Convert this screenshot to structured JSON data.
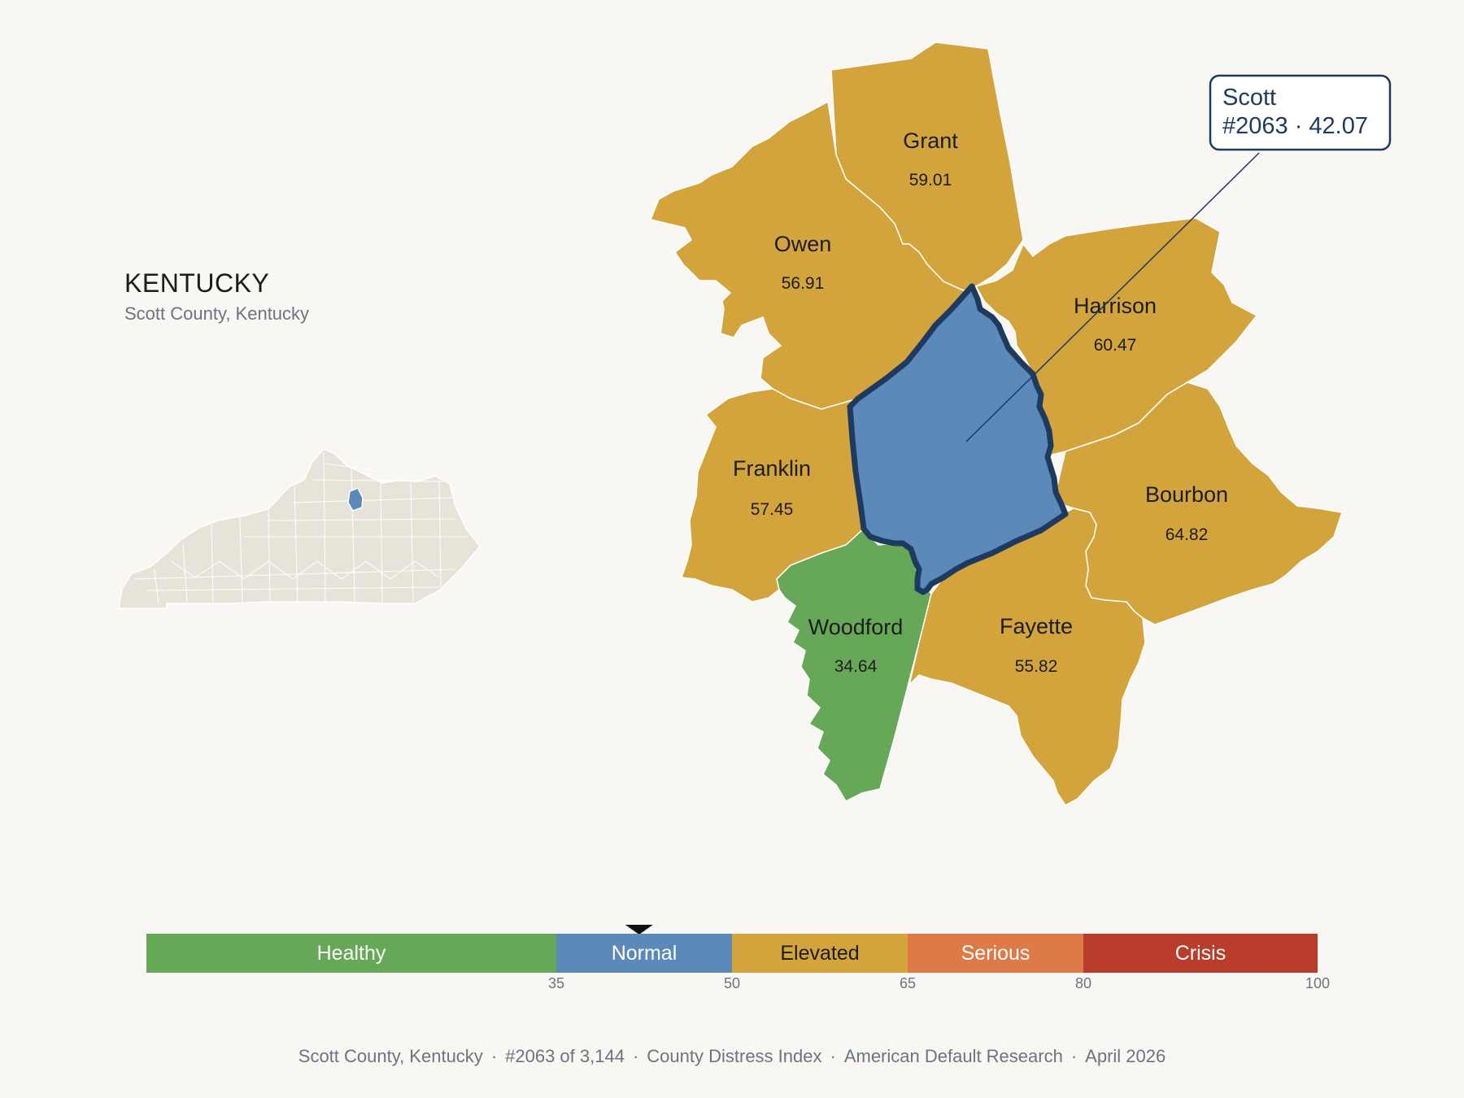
{
  "state": {
    "title": "KENTUCKY",
    "subtitle": "Scott County, Kentucky"
  },
  "counties": [
    {
      "name": "Grant",
      "value": "59.01",
      "category": "Elevated"
    },
    {
      "name": "Owen",
      "value": "56.91",
      "category": "Elevated"
    },
    {
      "name": "Harrison",
      "value": "60.47",
      "category": "Elevated"
    },
    {
      "name": "Franklin",
      "value": "57.45",
      "category": "Elevated"
    },
    {
      "name": "Bourbon",
      "value": "64.82",
      "category": "Elevated"
    },
    {
      "name": "Woodford",
      "value": "34.64",
      "category": "Healthy"
    },
    {
      "name": "Fayette",
      "value": "55.82",
      "category": "Elevated"
    },
    {
      "name": "Scott",
      "value": "42.07",
      "category": "Normal",
      "highlighted": true
    }
  ],
  "callout": {
    "line1": "Scott",
    "line2": "#2063 · 42.07"
  },
  "legend": {
    "marker_value": 42.07,
    "segments": [
      {
        "label": "Healthy",
        "from": 0,
        "to": 35,
        "color": "#67a758"
      },
      {
        "label": "Normal",
        "from": 35,
        "to": 50,
        "color": "#5b8aba"
      },
      {
        "label": "Elevated",
        "from": 50,
        "to": 65,
        "color": "#d4a43c"
      },
      {
        "label": "Serious",
        "from": 65,
        "to": 80,
        "color": "#dd7a48"
      },
      {
        "label": "Crisis",
        "from": 80,
        "to": 100,
        "color": "#ba3d2c"
      }
    ],
    "ticks": [
      "35",
      "50",
      "65",
      "80",
      "100"
    ]
  },
  "colors": {
    "healthy": "#67a758",
    "normal": "#5b8aba",
    "elevated": "#d4a43c",
    "serious": "#dd7a48",
    "crisis": "#ba3d2c",
    "highlight_border": "#1e3a5f",
    "inset_land": "#e8e3d9"
  },
  "footer": {
    "parts": [
      "Scott County, Kentucky",
      "#2063 of 3,144",
      "County Distress Index",
      "American Default Research",
      "April 2026"
    ],
    "separator": "·"
  }
}
